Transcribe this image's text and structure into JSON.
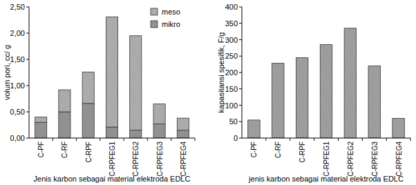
{
  "chart_data": [
    {
      "type": "bar",
      "stacked": true,
      "legend": "top-right",
      "grid": false,
      "x_label": "Jenis karbon sebagai material elektroda EDLC",
      "y_label": "volum pori, cc/ g",
      "categories": [
        "C-PF",
        "C-RF",
        "C-RPF",
        "C-RPFEG1",
        "C-RPFEG2",
        "C-RPFEG3",
        "C-RPFEG4"
      ],
      "series": [
        {
          "name": "mikro",
          "color": "#9a9a9a",
          "values": [
            0.3,
            0.5,
            0.66,
            0.21,
            0.15,
            0.27,
            0.15
          ]
        },
        {
          "name": "meso",
          "color": "#b8b8b8",
          "values": [
            0.1,
            0.42,
            0.6,
            2.1,
            1.8,
            0.38,
            0.23
          ]
        }
      ],
      "ylim": [
        0,
        2.5
      ],
      "yticks": [
        {
          "value": 0,
          "label": "0,00"
        },
        {
          "value": 0.5,
          "label": "0,50"
        },
        {
          "value": 1,
          "label": "1,00"
        },
        {
          "value": 1.5,
          "label": "1,50"
        },
        {
          "value": 2,
          "label": "2,00"
        },
        {
          "value": 2.5,
          "label": "2,50"
        }
      ]
    },
    {
      "type": "bar",
      "grid": false,
      "x_label": "jenis karbon sebagai material elektroda EDLC",
      "y_label": "kapasitansi spesifik, F/g",
      "categories": [
        "C-PF",
        "C-RF",
        "C-RPF",
        "C-RPFEG1",
        "C-RPFEG2",
        "C-RPFEG3",
        "C-RPFEG4"
      ],
      "values": [
        55,
        228,
        245,
        285,
        335,
        220,
        60
      ],
      "color": "#a8a8a8",
      "ylim": [
        0,
        400
      ],
      "yticks": [
        0,
        50,
        100,
        150,
        200,
        250,
        300,
        350,
        400
      ]
    }
  ]
}
